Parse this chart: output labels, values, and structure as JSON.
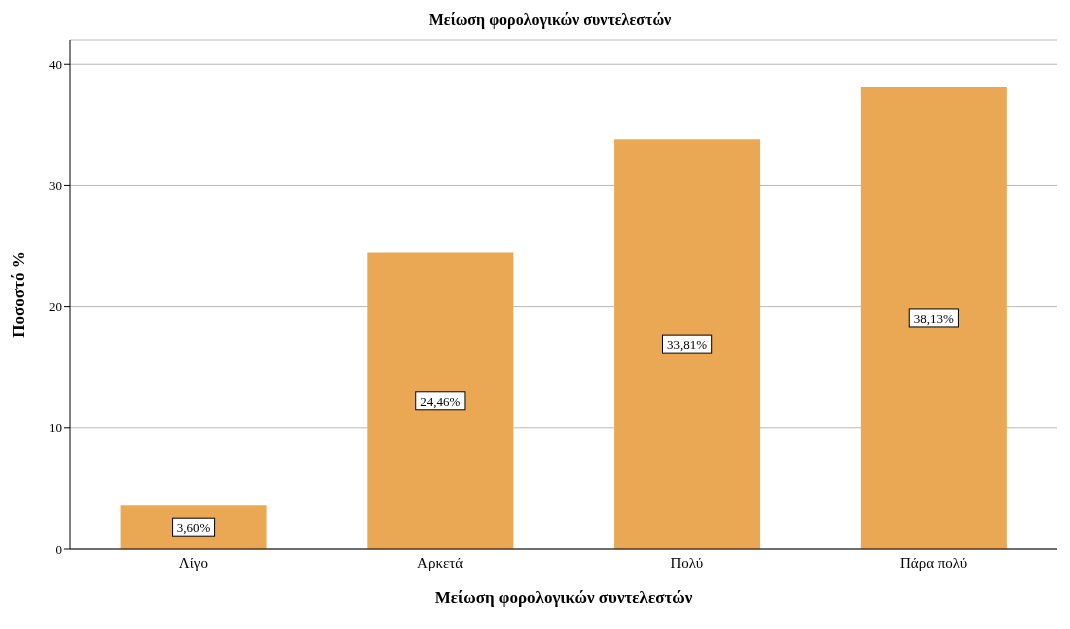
{
  "chart_data": {
    "type": "bar",
    "title": "Μείωση φορολογικών συντελεστών",
    "xlabel": "Μείωση φορολογικών συντελεστών",
    "ylabel": "Ποσοστό %",
    "categories": [
      "Λίγο",
      "Αρκετά",
      "Πολύ",
      "Πάρα πολύ"
    ],
    "values": [
      3.6,
      24.46,
      33.81,
      38.13
    ],
    "value_labels": [
      "3,60%",
      "24,46%",
      "33,81%",
      "38,13%"
    ],
    "color": "#eba854",
    "ylim": [
      0,
      42
    ],
    "yticks": [
      0,
      10,
      20,
      30,
      40
    ],
    "grid": "y"
  }
}
